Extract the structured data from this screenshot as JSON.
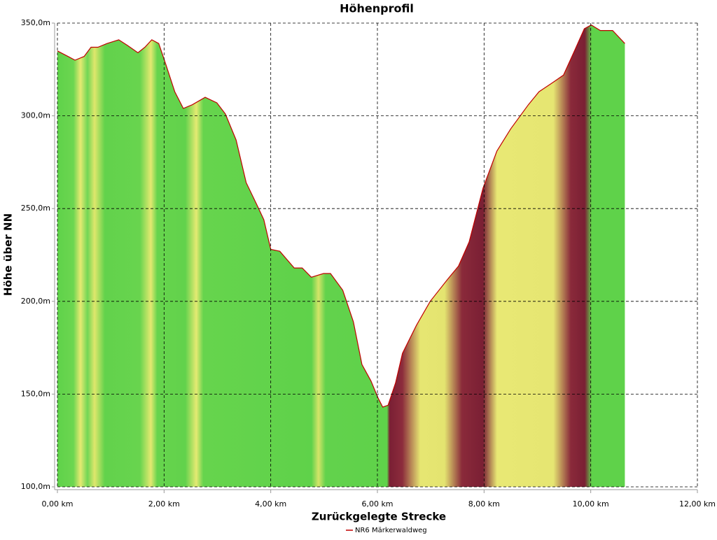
{
  "chart_data": {
    "type": "area",
    "title": "Höhenprofil",
    "x_label": "Zurückgelegte Strecke",
    "y_label": "Höhe über NN",
    "x": [
      0,
      0.2,
      0.33,
      0.5,
      0.63,
      0.76,
      0.93,
      1.15,
      1.31,
      1.51,
      1.64,
      1.77,
      1.9,
      2.03,
      2.2,
      2.36,
      2.53,
      2.77,
      2.99,
      3.15,
      3.35,
      3.54,
      3.74,
      3.87,
      4.0,
      4.17,
      4.44,
      4.59,
      4.76,
      4.99,
      5.12,
      5.35,
      5.55,
      5.71,
      5.88,
      6.01,
      6.1,
      6.2,
      6.34,
      6.47,
      6.73,
      6.99,
      7.32,
      7.52,
      7.72,
      7.98,
      8.24,
      8.5,
      8.83,
      9.03,
      9.29,
      9.49,
      9.71,
      9.88,
      10.01,
      10.18,
      10.41,
      10.64
    ],
    "series": [
      {
        "name": "NR6 Märkerwaldweg",
        "color": "#c00000",
        "values": [
          335,
          332,
          330,
          332,
          337,
          337,
          339,
          341,
          338,
          334,
          337,
          341,
          339,
          328,
          313,
          304,
          306,
          310,
          307,
          301,
          287,
          264,
          252,
          244,
          228,
          227,
          218,
          218,
          213,
          215,
          215,
          206,
          189,
          166,
          157,
          148,
          143,
          144,
          156,
          172,
          187,
          200,
          212,
          219,
          232,
          261,
          281,
          293,
          306,
          313,
          318,
          322,
          336,
          347,
          349,
          346,
          346,
          339
        ]
      }
    ],
    "xlim": [
      0,
      12
    ],
    "ylim": [
      100,
      350
    ],
    "xticks": [
      {
        "value": 0,
        "label": "0,00 km"
      },
      {
        "value": 2,
        "label": "2,00 km"
      },
      {
        "value": 4,
        "label": "4,00 km"
      },
      {
        "value": 6,
        "label": "6,00 km"
      },
      {
        "value": 8,
        "label": "8,00 km"
      },
      {
        "value": 10,
        "label": "10,00 km"
      },
      {
        "value": 12,
        "label": "12,00 km"
      }
    ],
    "yticks": [
      {
        "value": 100,
        "label": "100,0m"
      },
      {
        "value": 150,
        "label": "150,0m"
      },
      {
        "value": 200,
        "label": "200,0m"
      },
      {
        "value": 250,
        "label": "250,0m"
      },
      {
        "value": 300,
        "label": "300,0m"
      },
      {
        "value": 350,
        "label": "350,0m"
      }
    ],
    "grid": true
  }
}
